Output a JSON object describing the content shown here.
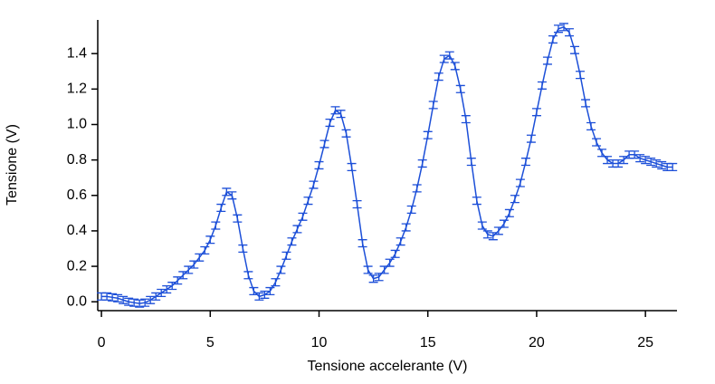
{
  "chart_data": {
    "type": "errorbar-line",
    "xlabel": "Tensione accelerante (V)",
    "ylabel": "Tensione (V)",
    "xlim": [
      -0.17,
      26.45
    ],
    "ylim": [
      -0.05,
      1.59
    ],
    "xticks": [
      0,
      5,
      10,
      15,
      20,
      25
    ],
    "yticks": [
      {
        "value": 0,
        "label": "0.0"
      },
      0.2,
      0.4,
      0.6,
      0.8,
      {
        "value": 1,
        "label": "1.0"
      },
      1.2,
      1.4
    ],
    "x": [
      0,
      0.25,
      0.5,
      0.75,
      1,
      1.25,
      1.5,
      1.75,
      2,
      2.25,
      2.5,
      2.75,
      3,
      3.25,
      3.5,
      3.75,
      4,
      4.25,
      4.5,
      4.75,
      5,
      5.25,
      5.5,
      5.75,
      6,
      6.25,
      6.5,
      6.75,
      7,
      7.25,
      7.5,
      7.75,
      8,
      8.25,
      8.5,
      8.75,
      9,
      9.25,
      9.5,
      9.75,
      10,
      10.25,
      10.5,
      10.75,
      11,
      11.25,
      11.5,
      11.75,
      12,
      12.25,
      12.5,
      12.75,
      13,
      13.25,
      13.5,
      13.75,
      14,
      14.25,
      14.5,
      14.75,
      15,
      15.25,
      15.5,
      15.75,
      16,
      16.25,
      16.5,
      16.75,
      17,
      17.25,
      17.5,
      17.75,
      18,
      18.25,
      18.5,
      18.75,
      19,
      19.25,
      19.5,
      19.75,
      20,
      20.25,
      20.5,
      20.75,
      21,
      21.25,
      21.5,
      21.75,
      22,
      22.25,
      22.5,
      22.75,
      23,
      23.25,
      23.5,
      23.75,
      24,
      24.25,
      24.5,
      24.75,
      25,
      25.25,
      25.5,
      25.75,
      26,
      26.25
    ],
    "series": [
      {
        "color": "#1c4fd8",
        "error": 0.02,
        "values": [
          0.03,
          0.03,
          0.025,
          0.02,
          0.01,
          0,
          -0.005,
          -0.01,
          -0.005,
          0.01,
          0.03,
          0.05,
          0.07,
          0.09,
          0.12,
          0.15,
          0.18,
          0.21,
          0.25,
          0.29,
          0.35,
          0.43,
          0.53,
          0.62,
          0.6,
          0.47,
          0.3,
          0.15,
          0.06,
          0.03,
          0.04,
          0.06,
          0.11,
          0.18,
          0.26,
          0.34,
          0.41,
          0.48,
          0.57,
          0.66,
          0.77,
          0.89,
          1.01,
          1.08,
          1.06,
          0.95,
          0.76,
          0.55,
          0.33,
          0.18,
          0.13,
          0.14,
          0.18,
          0.22,
          0.27,
          0.34,
          0.42,
          0.52,
          0.64,
          0.78,
          0.94,
          1.11,
          1.27,
          1.37,
          1.39,
          1.33,
          1.2,
          1.03,
          0.79,
          0.57,
          0.43,
          0.38,
          0.37,
          0.4,
          0.44,
          0.5,
          0.58,
          0.67,
          0.79,
          0.92,
          1.07,
          1.22,
          1.36,
          1.48,
          1.54,
          1.55,
          1.52,
          1.42,
          1.28,
          1.12,
          0.99,
          0.9,
          0.84,
          0.8,
          0.78,
          0.78,
          0.8,
          0.83,
          0.83,
          0.81,
          0.8,
          0.79,
          0.78,
          0.77,
          0.76,
          0.76
        ]
      }
    ]
  }
}
